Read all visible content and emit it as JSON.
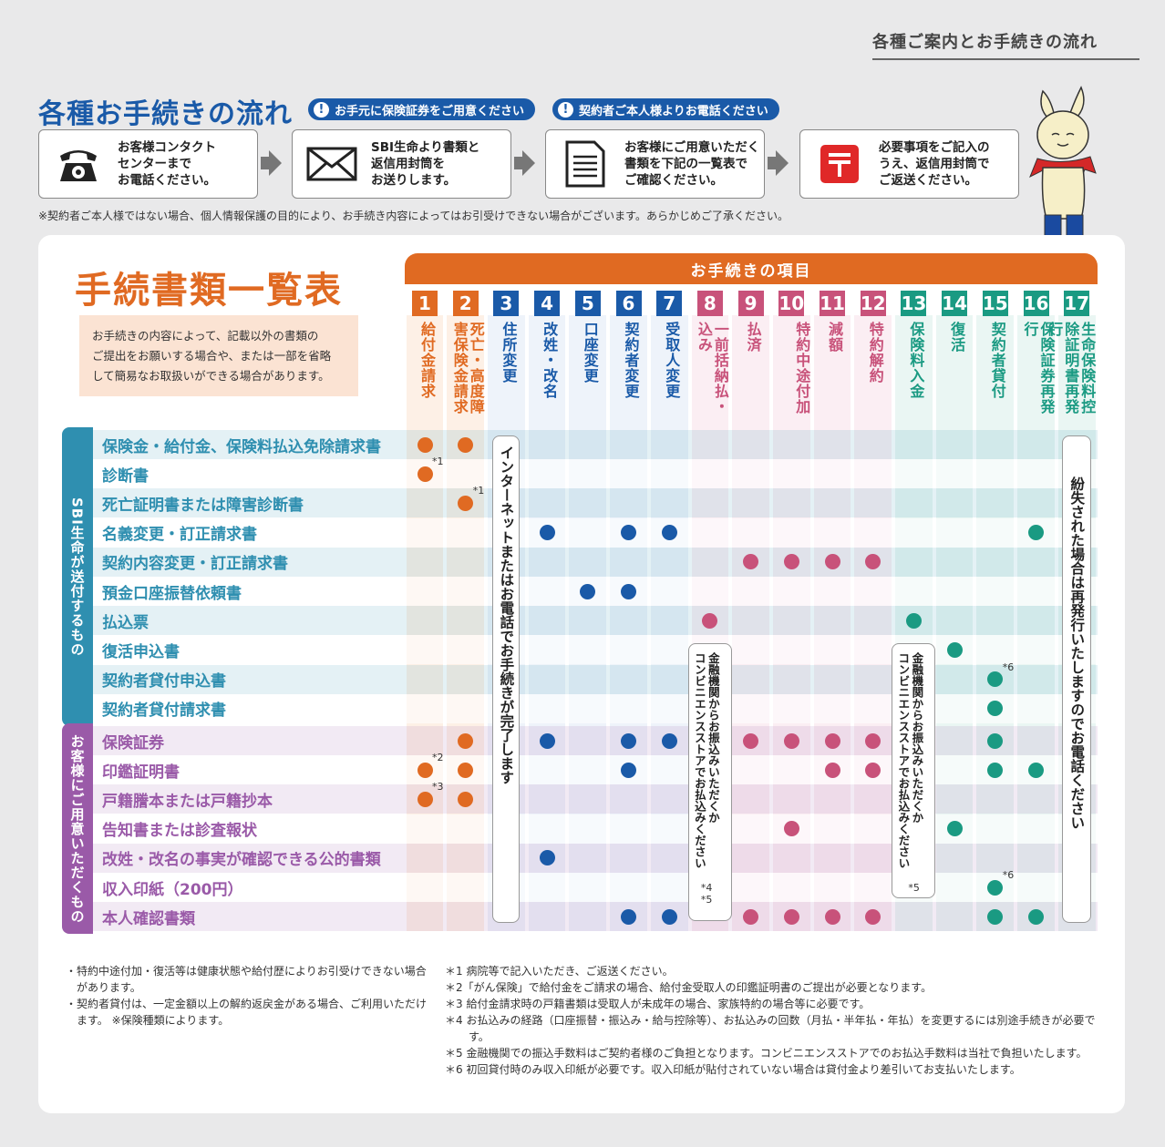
{
  "header": {
    "title": "各種ご案内とお手続きの流れ"
  },
  "flow": {
    "title": "各種お手続きの流れ",
    "pills": [
      "お手元に保険証券をご用意ください",
      "契約者ご本人様よりお電話ください"
    ],
    "steps": [
      {
        "text": "お客様コンタクト\nセンターまで\nお電話ください。",
        "icon": "phone-icon"
      },
      {
        "text": "SBI生命より書類と\n返信用封筒を\nお送りします。",
        "icon": "envelope-icon"
      },
      {
        "text": "お客様にご用意いただく\n書類を下記の一覧表で\nご確認ください。",
        "icon": "document-icon"
      },
      {
        "text": "必要事項をご記入の\nうえ、返信用封筒で\nご返送ください。",
        "icon": "postbox-icon"
      }
    ],
    "note": "※契約者ご本人様ではない場合、個人情報保護の目的により、お手続き内容によってはお引受けできない場合がございます。あらかじめご了承ください。"
  },
  "table": {
    "title": "手続書類一覧表",
    "description": "お手続きの内容によって、記載以外の書類の\nご提出をお願いする場合や、または一部を省略\nして簡易なお取扱いができる場合があります。",
    "items_header": "お手続きの項目",
    "columns": [
      {
        "num": "1",
        "label": "給付金請求",
        "color": "#e06a22"
      },
      {
        "num": "2",
        "label": "死亡・高度障害保険金請求",
        "color": "#e06a22"
      },
      {
        "num": "3",
        "label": "住所変更",
        "color": "#1a5aa8"
      },
      {
        "num": "4",
        "label": "改姓・改名",
        "color": "#1a5aa8"
      },
      {
        "num": "5",
        "label": "口座変更",
        "color": "#1a5aa8"
      },
      {
        "num": "6",
        "label": "契約者変更",
        "color": "#1a5aa8"
      },
      {
        "num": "7",
        "label": "受取人変更",
        "color": "#1a5aa8"
      },
      {
        "num": "8",
        "label": "一前括納払・込み",
        "color": "#c8527a"
      },
      {
        "num": "9",
        "label": "払済",
        "color": "#c8527a"
      },
      {
        "num": "10",
        "label": "特約中途付加",
        "color": "#c8527a"
      },
      {
        "num": "11",
        "label": "減額",
        "color": "#c8527a"
      },
      {
        "num": "12",
        "label": "特約解約",
        "color": "#c8527a"
      },
      {
        "num": "13",
        "label": "保険料入金",
        "color": "#1a9a82"
      },
      {
        "num": "14",
        "label": "復活",
        "color": "#1a9a82"
      },
      {
        "num": "15",
        "label": "契約者貸付",
        "color": "#1a9a82"
      },
      {
        "num": "16",
        "label": "保険証券再発行",
        "color": "#1a9a82"
      },
      {
        "num": "17",
        "label": "生命保険料控除証明書再発行",
        "color": "#1a9a82"
      }
    ],
    "groups": [
      {
        "label": "SBI生命が送付するもの",
        "color": "#2f8fb0"
      },
      {
        "label": "お客様にご用意いただくもの",
        "color": "#9a5aa8"
      }
    ],
    "rows": [
      {
        "label": "保険金・給付金、保険料払込免除請求書",
        "group": 0
      },
      {
        "label": "診断書",
        "group": 0
      },
      {
        "label": "死亡証明書または障害診断書",
        "group": 0
      },
      {
        "label": "名義変更・訂正請求書",
        "group": 0
      },
      {
        "label": "契約内容変更・訂正請求書",
        "group": 0
      },
      {
        "label": "預金口座振替依頼書",
        "group": 0
      },
      {
        "label": "払込票",
        "group": 0
      },
      {
        "label": "復活申込書",
        "group": 0
      },
      {
        "label": "契約者貸付申込書",
        "group": 0
      },
      {
        "label": "契約者貸付請求書",
        "group": 0
      },
      {
        "label": "保険証券",
        "group": 1
      },
      {
        "label": "印鑑証明書",
        "group": 1
      },
      {
        "label": "戸籍謄本または戸籍抄本",
        "group": 1
      },
      {
        "label": "告知書または診査報状",
        "group": 1
      },
      {
        "label": "改姓・改名の事実が確認できる公的書類",
        "group": 1
      },
      {
        "label": "収入印紙（200円）",
        "group": 1
      },
      {
        "label": "本人確認書類",
        "group": 1
      }
    ],
    "marks": [
      [
        0,
        0
      ],
      [
        0,
        1
      ],
      [
        1,
        0
      ],
      [
        2,
        1
      ],
      [
        3,
        3
      ],
      [
        3,
        5
      ],
      [
        3,
        6
      ],
      [
        3,
        15
      ],
      [
        4,
        8
      ],
      [
        4,
        9
      ],
      [
        4,
        10
      ],
      [
        4,
        11
      ],
      [
        5,
        4
      ],
      [
        5,
        5
      ],
      [
        6,
        7
      ],
      [
        6,
        12
      ],
      [
        7,
        13
      ],
      [
        8,
        14
      ],
      [
        9,
        14
      ],
      [
        10,
        1
      ],
      [
        10,
        3
      ],
      [
        10,
        5
      ],
      [
        10,
        6
      ],
      [
        10,
        8
      ],
      [
        10,
        9
      ],
      [
        10,
        10
      ],
      [
        10,
        11
      ],
      [
        10,
        14
      ],
      [
        11,
        0
      ],
      [
        11,
        1
      ],
      [
        11,
        5
      ],
      [
        11,
        10
      ],
      [
        11,
        11
      ],
      [
        11,
        14
      ],
      [
        11,
        15
      ],
      [
        12,
        0
      ],
      [
        12,
        1
      ],
      [
        13,
        9
      ],
      [
        13,
        13
      ],
      [
        14,
        3
      ],
      [
        15,
        14
      ],
      [
        16,
        5
      ],
      [
        16,
        6
      ],
      [
        16,
        8
      ],
      [
        16,
        9
      ],
      [
        16,
        10
      ],
      [
        16,
        11
      ],
      [
        16,
        14
      ],
      [
        16,
        15
      ]
    ],
    "asterisks": [
      {
        "row": 1,
        "col": 0,
        "text": "*1"
      },
      {
        "row": 2,
        "col": 1,
        "text": "*1"
      },
      {
        "row": 8,
        "col": 14,
        "text": "*6"
      },
      {
        "row": 11,
        "col": 0,
        "text": "*2"
      },
      {
        "row": 12,
        "col": 0,
        "text": "*3"
      },
      {
        "row": 15,
        "col": 14,
        "text": "*6"
      }
    ],
    "col3_note": "インターネットまたはお電話でお手続きが完了します",
    "col17_note": "紛失された場合は再発行いたしますのでお電話ください",
    "col8_note": "金融機関からお振込みいただくか\nコンビニエンスストアでお払込みください",
    "col8_refs": "*4\n*5",
    "col13_note": "金融機関からお振込みいただくか\nコンビニエンスストアでお払込みください",
    "col13_refs": "*5"
  },
  "footer": {
    "left": [
      "・特約中途付加・復活等は健康状態や給付歴によりお引受けできない場合があります。",
      "・契約者貸付は、一定金額以上の解約返戻金がある場合、ご利用いただけます。 ※保険種類によります。"
    ],
    "right": [
      "＊1 病院等で記入いただき、ご返送ください。",
      "＊2「がん保険」で給付金をご請求の場合、給付金受取人の印鑑証明書のご提出が必要となります。",
      "＊3 給付金請求時の戸籍書類は受取人が未成年の場合、家族特約の場合等に必要です。",
      "＊4 お払込みの経路（口座振替・振込み・給与控除等）、お払込みの回数（月払・半年払・年払）を変更するには別途手続きが必要です。",
      "＊5 金融機関での振込手数料はご契約者様のご負担となります。コンビニエンスストアでのお払込手数料は当社で負担いたします。",
      "＊6 初回貸付時のみ収入印紙が必要です。収入印紙が貼付されていない場合は貸付金より差引いてお支払いたします。"
    ]
  },
  "colors": {
    "orange": "#e06a22",
    "blue": "#1a5aa8",
    "pink": "#c8527a",
    "green": "#1a9a82",
    "group_blue": "#2f8fb0",
    "group_purple": "#9a5aa8"
  }
}
